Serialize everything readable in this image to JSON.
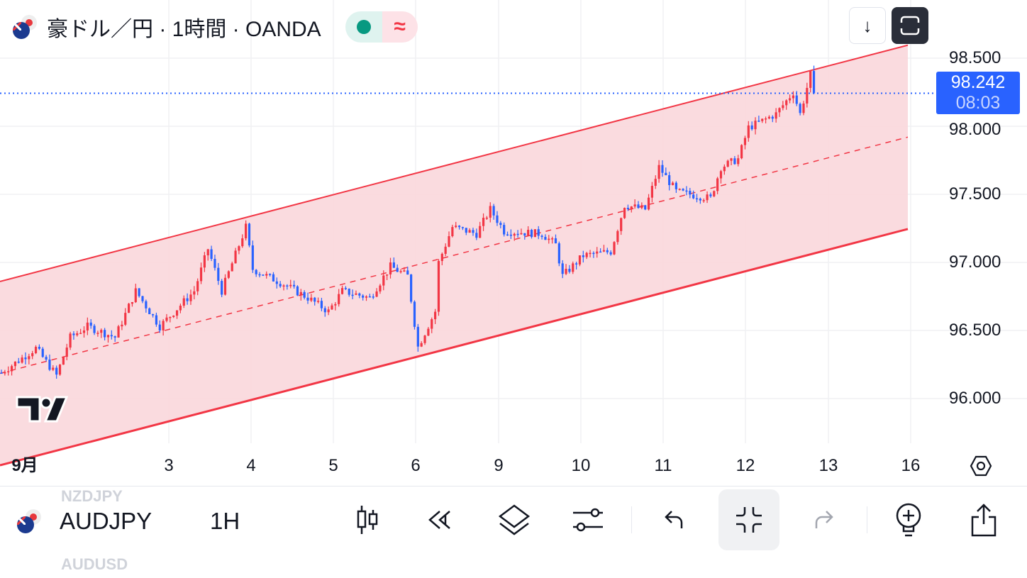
{
  "header": {
    "title": "豪ドル／円 · 1時間 · OANDA",
    "market_status_icon": "green-dot",
    "indicator_icon": "approx-wave"
  },
  "price_axis": {
    "labels": [
      "98.500",
      "98.000",
      "97.500",
      "97.000",
      "96.500",
      "96.000"
    ],
    "current_price": "98.242",
    "countdown": "08:03"
  },
  "time_axis": {
    "labels": [
      "9月",
      "3",
      "4",
      "5",
      "6",
      "9",
      "10",
      "11",
      "12",
      "13",
      "16"
    ],
    "settings_icon": "hexagon-gear"
  },
  "symbol_list": {
    "prev": "NZDJPY",
    "next": "AUDUSD"
  },
  "toolbar": {
    "symbol": "AUDJPY",
    "timeframe": "1H",
    "buttons": [
      "candles",
      "replay",
      "layers",
      "indicators-settings",
      "undo",
      "exit-fullscreen",
      "redo",
      "add-alert",
      "share"
    ]
  },
  "colors": {
    "up": "#f23645",
    "down": "#2962ff",
    "channel": "#f23645",
    "channel_fill": "#f9d7db",
    "price_line": "#2962ff"
  },
  "chart_data": {
    "type": "candlestick",
    "symbol": "AUDJPY",
    "interval": "1H",
    "ylim": [
      95.7,
      98.65
    ],
    "yticks": [
      96.0,
      96.5,
      97.0,
      97.5,
      98.0,
      98.5
    ],
    "last_price": 98.242,
    "path_keypoints": {
      "bar": [
        0,
        10,
        16,
        20,
        25,
        33,
        39,
        46,
        56,
        60,
        64,
        71,
        73,
        82,
        89,
        95,
        99,
        107,
        113,
        118,
        121,
        126,
        127,
        131,
        138,
        142,
        146,
        157,
        161,
        163,
        169,
        177,
        181,
        187,
        191,
        196,
        206,
        209,
        214,
        217,
        225,
        230,
        232,
        235,
        236
      ],
      "price": [
        96.19,
        96.37,
        96.17,
        96.45,
        96.53,
        96.45,
        96.79,
        96.53,
        96.79,
        97.1,
        96.79,
        97.26,
        96.95,
        96.84,
        96.74,
        96.64,
        96.79,
        96.74,
        96.97,
        96.9,
        96.38,
        96.64,
        97.0,
        97.26,
        97.21,
        97.39,
        97.23,
        97.21,
        97.13,
        96.9,
        97.05,
        97.08,
        97.42,
        97.39,
        97.7,
        97.52,
        97.47,
        97.7,
        97.76,
        97.99,
        98.09,
        98.25,
        98.09,
        98.38,
        98.24
      ]
    },
    "channel": {
      "upper": {
        "from_bar": 0,
        "from_price": 96.86,
        "to_bar": 264,
        "to_price": 98.6
      },
      "lower": {
        "from_bar": 0,
        "from_price": 95.51,
        "to_bar": 264,
        "to_price": 97.25
      },
      "median": "dashed"
    }
  }
}
